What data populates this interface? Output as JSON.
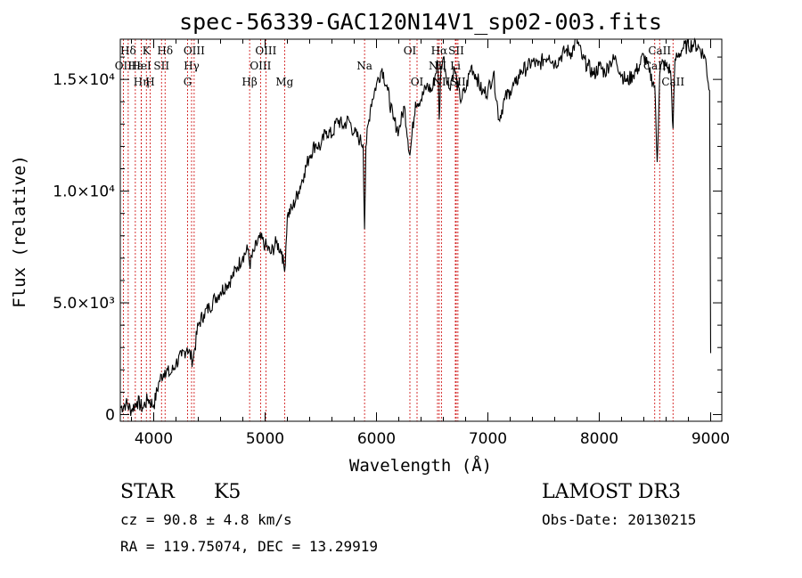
{
  "chart_data": {
    "type": "line",
    "title": "spec-56339-GAC120N14V1_sp02-003.fits",
    "xlabel": "Wavelength (Å)",
    "ylabel": "Flux (relative)",
    "xlim": [
      3700,
      9100
    ],
    "ylim": [
      -300,
      16800
    ],
    "x_ticks": [
      {
        "value": 4000,
        "label": "4000"
      },
      {
        "value": 5000,
        "label": "5000"
      },
      {
        "value": 6000,
        "label": "6000"
      },
      {
        "value": 7000,
        "label": "7000"
      },
      {
        "value": 8000,
        "label": "8000"
      },
      {
        "value": 9000,
        "label": "9000"
      }
    ],
    "y_ticks": [
      {
        "value": 0,
        "label": "0"
      },
      {
        "value": 5000,
        "label": "5.0×10³"
      },
      {
        "value": 10000,
        "label": "1.0×10⁴"
      },
      {
        "value": 15000,
        "label": "1.5×10⁴"
      }
    ],
    "series": [
      {
        "name": "flux",
        "x": [
          3700,
          3750,
          3800,
          3850,
          3900,
          3950,
          4000,
          4050,
          4100,
          4150,
          4200,
          4250,
          4300,
          4350,
          4400,
          4450,
          4500,
          4550,
          4600,
          4650,
          4700,
          4750,
          4800,
          4850,
          4861,
          4900,
          4950,
          5000,
          5050,
          5100,
          5150,
          5175,
          5200,
          5250,
          5300,
          5350,
          5400,
          5450,
          5500,
          5550,
          5600,
          5650,
          5700,
          5750,
          5800,
          5850,
          5880,
          5893,
          5905,
          5950,
          6000,
          6050,
          6100,
          6150,
          6200,
          6250,
          6300,
          6350,
          6400,
          6450,
          6500,
          6550,
          6563,
          6580,
          6600,
          6650,
          6700,
          6750,
          6800,
          6850,
          6900,
          6950,
          7000,
          7050,
          7100,
          7150,
          7200,
          7250,
          7300,
          7350,
          7400,
          7450,
          7500,
          7550,
          7600,
          7650,
          7700,
          7750,
          7800,
          7850,
          7900,
          7950,
          8000,
          8050,
          8100,
          8150,
          8200,
          8250,
          8300,
          8350,
          8400,
          8450,
          8498,
          8520,
          8542,
          8560,
          8600,
          8640,
          8662,
          8680,
          8700,
          8750,
          8800,
          8850,
          8900,
          8950,
          8990,
          9000
        ],
        "y": [
          300,
          500,
          200,
          600,
          300,
          700,
          400,
          1500,
          2000,
          1800,
          2300,
          2600,
          3000,
          2400,
          4000,
          4500,
          4800,
          5200,
          5500,
          5800,
          6100,
          6600,
          7100,
          7400,
          6700,
          7300,
          7900,
          7600,
          7200,
          7700,
          7300,
          6400,
          8900,
          9300,
          10000,
          10800,
          11600,
          12100,
          12000,
          12700,
          12500,
          13200,
          12900,
          13200,
          12600,
          12300,
          12100,
          8300,
          12000,
          13900,
          14800,
          15500,
          14500,
          13200,
          12700,
          13800,
          11600,
          14000,
          14100,
          14700,
          14500,
          15800,
          13200,
          15600,
          16000,
          14600,
          15500,
          14100,
          14500,
          15600,
          15100,
          14400,
          14500,
          15300,
          13200,
          14100,
          14500,
          14800,
          15400,
          15500,
          15800,
          15600,
          15900,
          16100,
          15700,
          16000,
          16300,
          16200,
          16800,
          15900,
          15600,
          15200,
          15600,
          15300,
          15800,
          15900,
          15200,
          14900,
          15200,
          15500,
          16100,
          15300,
          14700,
          11300,
          15200,
          15700,
          15600,
          15400,
          12800,
          15900,
          16000,
          16400,
          16500,
          16600,
          16400,
          16000,
          14500,
          3000
        ]
      }
    ],
    "line_markers": [
      {
        "label": "Hδ",
        "value": 3771,
        "row": 1
      },
      {
        "label": "OII",
        "value": 3727,
        "row": 2
      },
      {
        "label": "Hε",
        "value": 3835,
        "row": 2
      },
      {
        "label": "Hη",
        "value": 3889,
        "row": 3
      },
      {
        "label": "K",
        "value": 3934,
        "row": 1
      },
      {
        "label": "HeI",
        "value": 3889,
        "row": 2
      },
      {
        "label": "H",
        "value": 3968,
        "row": 3
      },
      {
        "label": "SII",
        "value": 4070,
        "row": 2
      },
      {
        "label": "Hδ",
        "value": 4102,
        "row": 1
      },
      {
        "label": "OIII",
        "value": 4363,
        "row": 1
      },
      {
        "label": "Hγ",
        "value": 4340,
        "row": 2
      },
      {
        "label": "G",
        "value": 4304,
        "row": 3
      },
      {
        "label": "Hβ",
        "value": 4861,
        "row": 3
      },
      {
        "label": "OIII",
        "value": 4959,
        "row": 2
      },
      {
        "label": "OIII",
        "value": 5007,
        "row": 1
      },
      {
        "label": "Mg",
        "value": 5175,
        "row": 3
      },
      {
        "label": "Na",
        "value": 5893,
        "row": 2
      },
      {
        "label": "OI",
        "value": 6300,
        "row": 1
      },
      {
        "label": "OI",
        "value": 6364,
        "row": 3
      },
      {
        "label": "Hα",
        "value": 6563,
        "row": 1
      },
      {
        "label": "NII",
        "value": 6548,
        "row": 2
      },
      {
        "label": "NII",
        "value": 6583,
        "row": 3
      },
      {
        "label": "SII",
        "value": 6716,
        "row": 1
      },
      {
        "label": "Li",
        "value": 6708,
        "row": 2
      },
      {
        "label": "SII",
        "value": 6731,
        "row": 3
      },
      {
        "label": "CaII",
        "value": 8542,
        "row": 1
      },
      {
        "label": "CaII",
        "value": 8498,
        "row": 2
      },
      {
        "label": "CaII",
        "value": 8662,
        "row": 3
      }
    ]
  },
  "info": {
    "class_label": "STAR",
    "subclass": "K5",
    "survey": "LAMOST DR3",
    "redshift_line": "cz = 90.8 ± 4.8 km/s",
    "obs_date_line": "Obs-Date: 20130215",
    "coords_line": "RA = 119.75074, DEC =  13.29919"
  },
  "colors": {
    "line_marker": "#cc0000",
    "spectrum": "#000000",
    "axes": "#000000"
  }
}
